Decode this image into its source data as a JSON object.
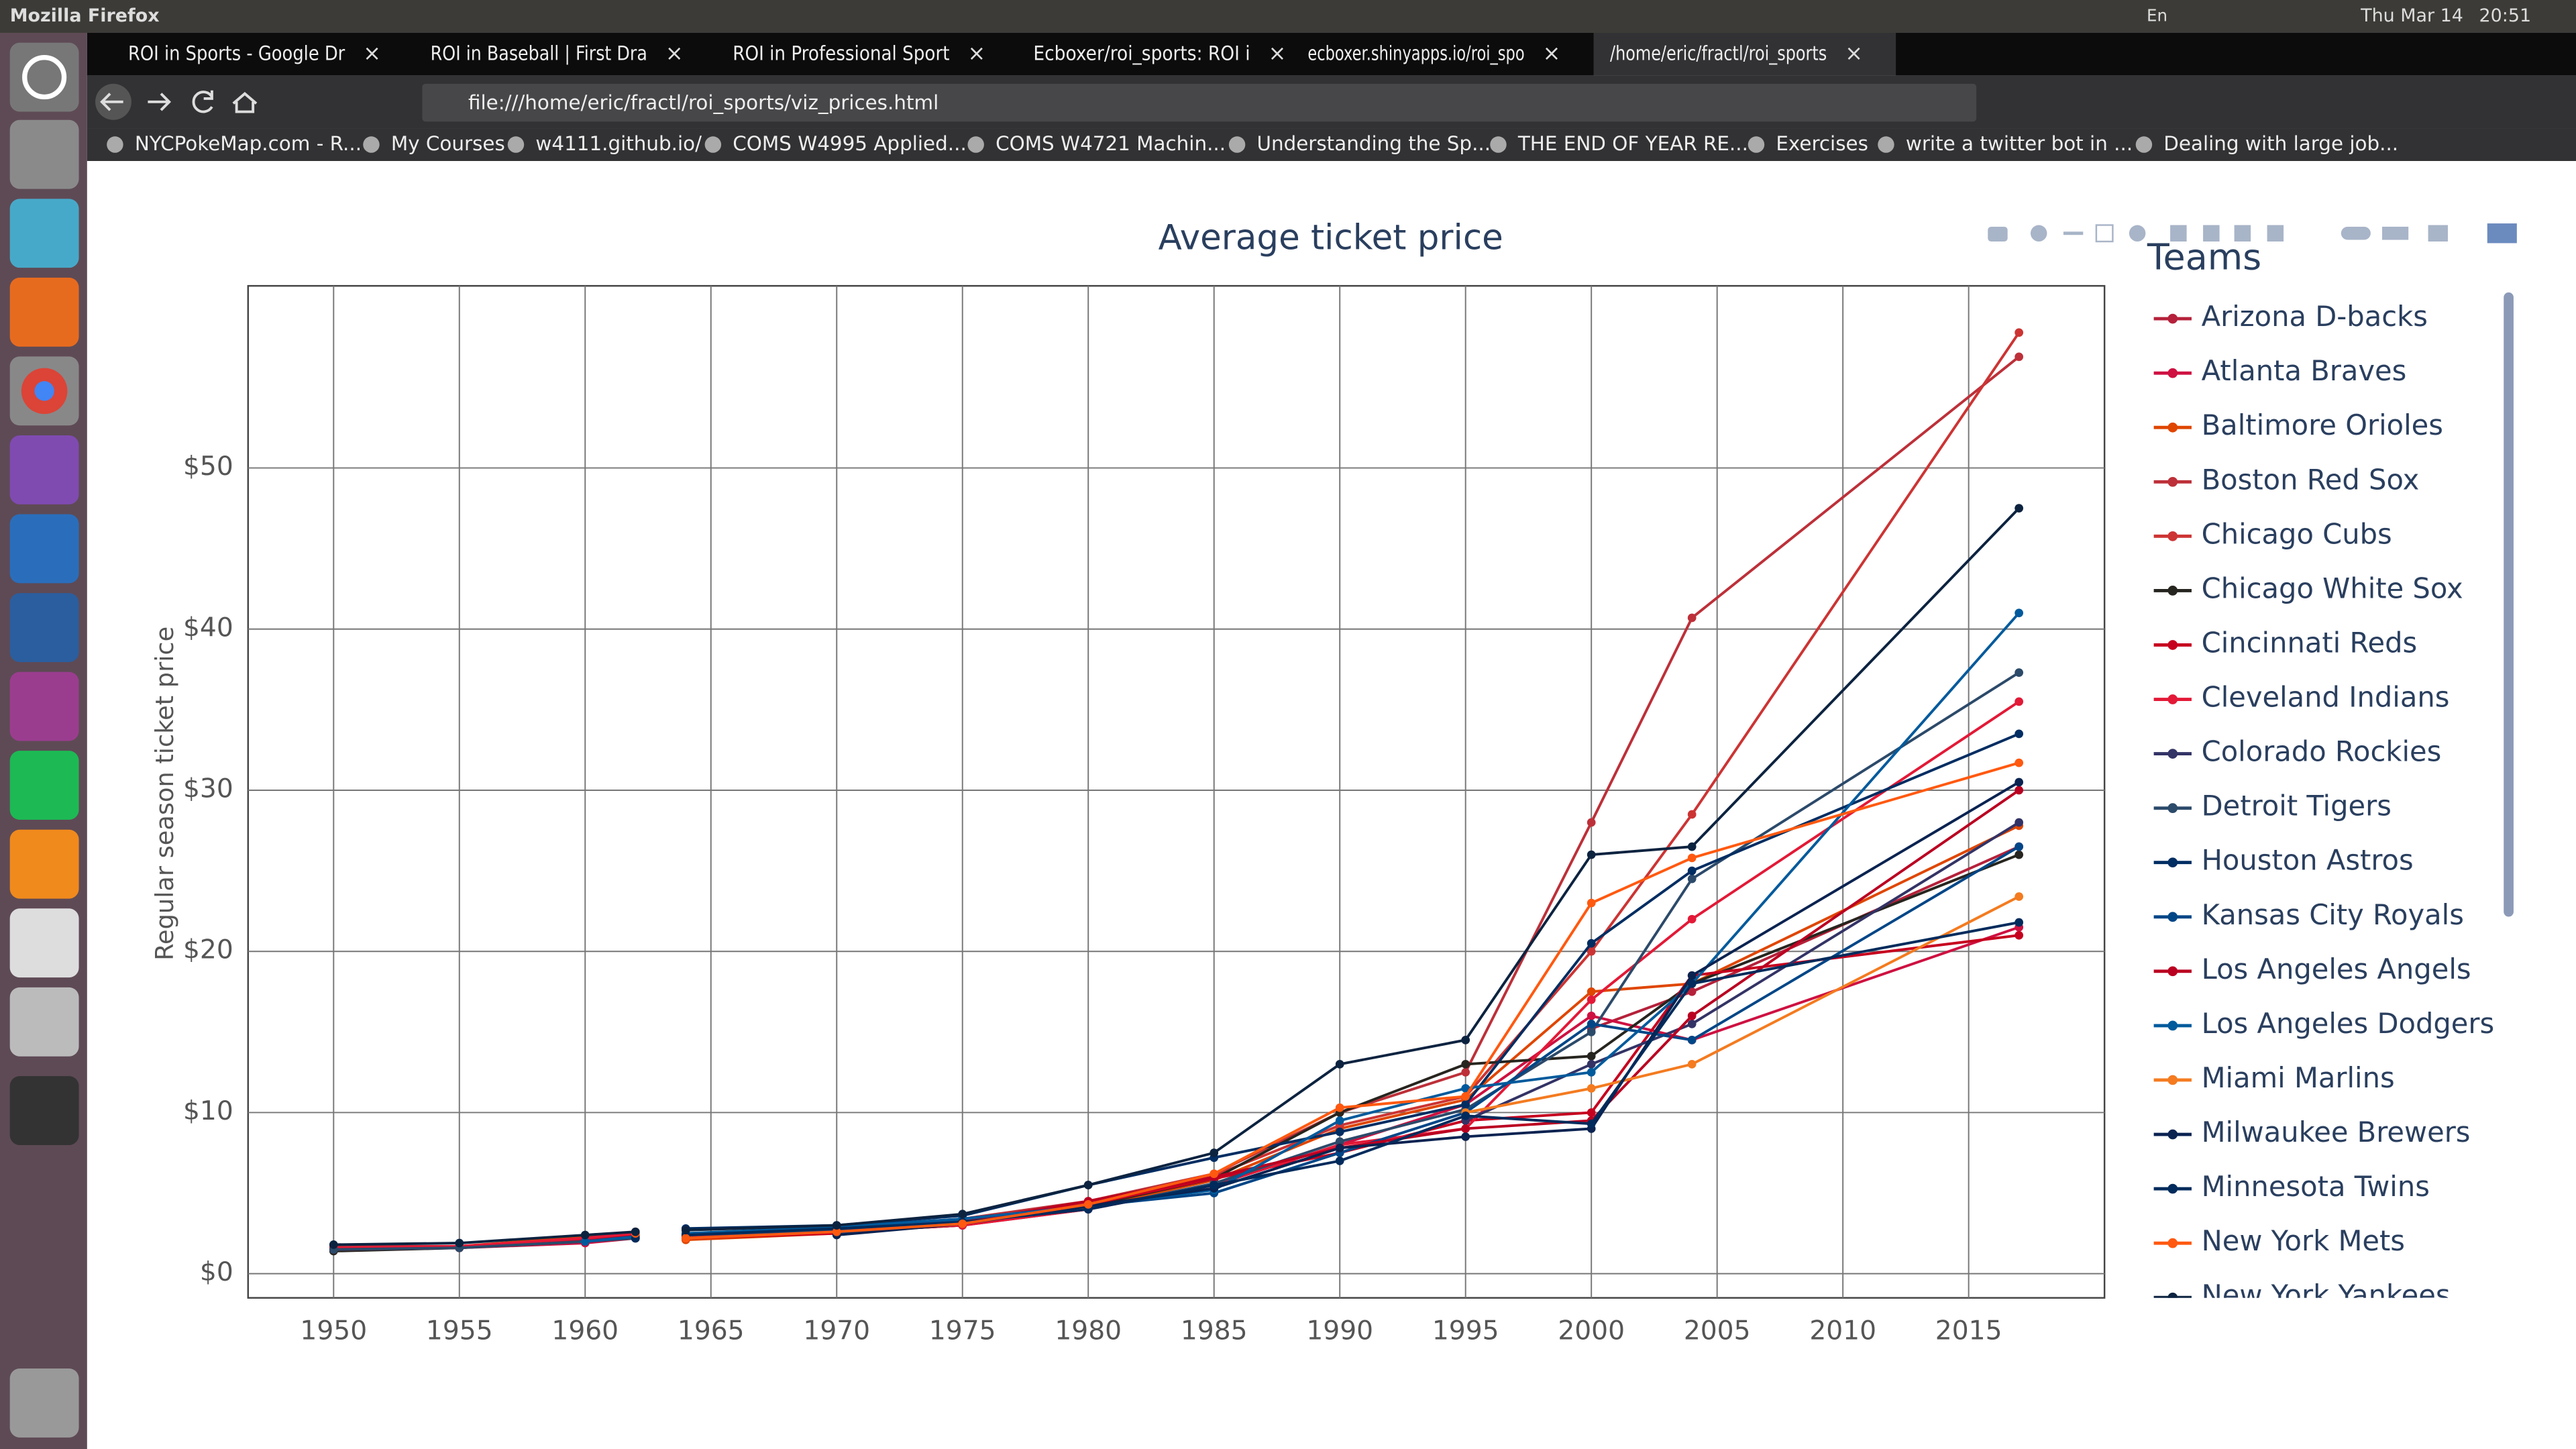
{
  "system_bar": {
    "app": "Mozilla Firefox",
    "lang": "En",
    "date": "Thu Mar 14",
    "time": "20:51"
  },
  "tabs": [
    "ROI in Sports - Google Dr",
    "ROI in Baseball | First Dra",
    "ROI in Professional Sport",
    "Ecboxer/roi_sports: ROI i",
    "ecboxer.shinyapps.io/roi_spo",
    "/home/eric/fractl/roi_sports"
  ],
  "url": "file:///home/eric/fractl/roi_sports/viz_prices.html",
  "bookmarks": [
    "NYCPokeMap.com - R...",
    "My Courses",
    "w4111.github.io/",
    "COMS W4995 Applied...",
    "COMS W4721 Machin...",
    "Understanding the Sp...",
    "THE END OF YEAR RE...",
    "Exercises",
    "write a twitter bot in ...",
    "Dealing with large job..."
  ],
  "chart_data": {
    "type": "line",
    "title": "Average ticket price",
    "y_label": "Regular season ticket price",
    "legend_title": "Teams",
    "legend_position": "right",
    "grid": true,
    "markers": true,
    "x": [
      1950,
      1955,
      1960,
      1962,
      1963,
      1964,
      1970,
      1975,
      1980,
      1985,
      1990,
      1995,
      2000,
      2004,
      2017
    ],
    "xlim": [
      1946.6,
      2020.4
    ],
    "xticks": [
      1950,
      1955,
      1960,
      1965,
      1970,
      1975,
      1980,
      1985,
      1990,
      1995,
      2000,
      2005,
      2010,
      2015
    ],
    "ylim": [
      -1.5,
      61.3
    ],
    "yticks": [
      {
        "value": 0,
        "label": "$0"
      },
      {
        "value": 10,
        "label": "$10"
      },
      {
        "value": 20,
        "label": "$20"
      },
      {
        "value": 30,
        "label": "$30"
      },
      {
        "value": 40,
        "label": "$40"
      },
      {
        "value": 50,
        "label": "$50"
      }
    ],
    "series": [
      {
        "name": "Arizona D-backs",
        "color": "#b5213a",
        "values": [
          null,
          null,
          null,
          null,
          null,
          null,
          null,
          null,
          null,
          null,
          null,
          null,
          15.2,
          17.5,
          26.5
        ]
      },
      {
        "name": "Atlanta Braves",
        "color": "#ce1141",
        "values": [
          1.5,
          1.6,
          1.9,
          2.2,
          null,
          2.3,
          2.6,
          3.0,
          4.0,
          5.5,
          8.0,
          10.5,
          16.0,
          14.5,
          21.5
        ]
      },
      {
        "name": "Baltimore Orioles",
        "color": "#df4601",
        "values": [
          1.6,
          1.7,
          2.3,
          2.5,
          null,
          2.1,
          2.5,
          3.1,
          4.1,
          5.8,
          9.0,
          10.8,
          17.5,
          18.0,
          27.8
        ]
      },
      {
        "name": "Boston Red Sox",
        "color": "#bd3039",
        "values": [
          1.7,
          1.7,
          2.2,
          2.6,
          null,
          2.4,
          2.9,
          3.4,
          4.5,
          6.2,
          10.0,
          12.5,
          28.0,
          40.7,
          56.9
        ]
      },
      {
        "name": "Chicago Cubs",
        "color": "#cc3433",
        "values": [
          1.6,
          1.7,
          2.1,
          2.4,
          null,
          2.3,
          2.8,
          3.3,
          4.4,
          6.1,
          9.2,
          11.0,
          20.0,
          28.5,
          58.4
        ]
      },
      {
        "name": "Chicago White Sox",
        "color": "#27251f",
        "values": [
          1.4,
          1.6,
          2.0,
          2.3,
          null,
          2.2,
          2.6,
          3.0,
          4.2,
          5.9,
          10.0,
          13.0,
          13.5,
          18.0,
          26.0
        ]
      },
      {
        "name": "Cincinnati Reds",
        "color": "#c6011f",
        "values": [
          1.5,
          1.6,
          2.1,
          2.4,
          null,
          2.2,
          2.5,
          3.2,
          4.3,
          5.9,
          7.5,
          9.5,
          10.0,
          18.5,
          21.0
        ]
      },
      {
        "name": "Cleveland Indians",
        "color": "#e31937",
        "values": [
          1.6,
          1.7,
          2.2,
          2.5,
          null,
          2.2,
          2.6,
          3.0,
          4.0,
          5.5,
          8.0,
          9.0,
          17.0,
          22.0,
          35.5
        ]
      },
      {
        "name": "Colorado Rockies",
        "color": "#333366",
        "values": [
          null,
          null,
          null,
          null,
          null,
          null,
          null,
          null,
          null,
          null,
          null,
          9.5,
          13.0,
          15.5,
          28.0
        ]
      },
      {
        "name": "Detroit Tigers",
        "color": "#2c4a6a",
        "values": [
          1.5,
          1.6,
          2.0,
          2.2,
          null,
          2.4,
          2.7,
          3.3,
          4.0,
          5.6,
          8.2,
          10.2,
          15.0,
          24.5,
          37.3
        ]
      },
      {
        "name": "Houston Astros",
        "color": "#002d62",
        "values": [
          null,
          null,
          null,
          2.2,
          null,
          2.8,
          3.0,
          3.6,
          5.5,
          7.2,
          8.8,
          10.5,
          20.5,
          25.0,
          33.5
        ]
      },
      {
        "name": "Kansas City Royals",
        "color": "#004687",
        "values": [
          null,
          null,
          null,
          null,
          null,
          null,
          2.5,
          3.4,
          4.2,
          5.0,
          7.5,
          10.0,
          15.5,
          14.5,
          26.5
        ]
      },
      {
        "name": "Los Angeles Angels",
        "color": "#ba0021",
        "values": [
          null,
          null,
          null,
          2.3,
          null,
          2.4,
          2.8,
          3.2,
          4.5,
          6.0,
          7.8,
          9.0,
          9.5,
          16.0,
          30.0
        ]
      },
      {
        "name": "Los Angeles Dodgers",
        "color": "#005a9c",
        "values": [
          null,
          null,
          2.0,
          2.3,
          null,
          2.5,
          2.9,
          3.4,
          4.2,
          5.2,
          9.5,
          11.5,
          12.5,
          18.0,
          41.0
        ]
      },
      {
        "name": "Miami Marlins",
        "color": "#f47b20",
        "values": [
          null,
          null,
          null,
          null,
          null,
          null,
          null,
          null,
          null,
          null,
          null,
          10.0,
          11.5,
          13.0,
          23.4
        ]
      },
      {
        "name": "Milwaukee Brewers",
        "color": "#0a2351",
        "values": [
          null,
          null,
          null,
          null,
          null,
          null,
          2.4,
          3.1,
          4.2,
          5.3,
          7.8,
          8.5,
          9.0,
          18.5,
          30.5
        ]
      },
      {
        "name": "Minnesota Twins",
        "color": "#002b5c",
        "values": [
          null,
          null,
          null,
          2.2,
          null,
          2.4,
          2.8,
          3.2,
          4.0,
          5.5,
          7.0,
          9.8,
          9.3,
          18.0,
          21.8
        ]
      },
      {
        "name": "New York Mets",
        "color": "#ff5910",
        "values": [
          null,
          null,
          null,
          2.5,
          null,
          2.2,
          2.6,
          3.1,
          4.3,
          6.2,
          10.3,
          11.0,
          23.0,
          25.8,
          31.7
        ]
      },
      {
        "name": "New York Yankees",
        "color": "#0c2340",
        "values": [
          1.8,
          1.9,
          2.4,
          2.6,
          null,
          2.7,
          3.0,
          3.7,
          5.5,
          7.5,
          13.0,
          14.5,
          26.0,
          26.5,
          47.5
        ]
      }
    ]
  }
}
